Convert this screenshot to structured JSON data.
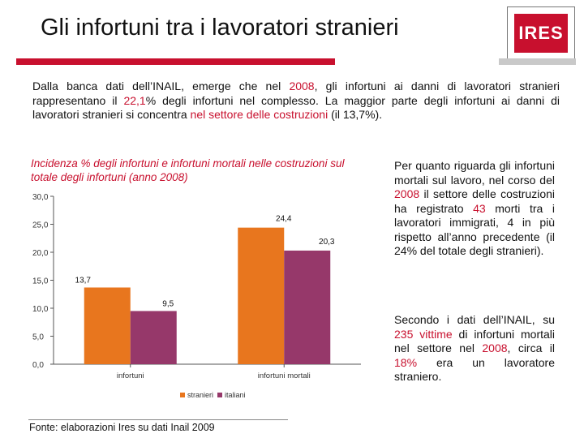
{
  "header": {
    "title": "Gli infortuni tra i lavoratori stranieri",
    "logo_text": "IRES",
    "accent_color": "#c8102e"
  },
  "intro": {
    "p1": "Dalla banca dati dell’INAIL, emerge che nel ",
    "year": "2008",
    "p2": ", gli infortuni ai danni di lavoratori stranieri rappresentano il ",
    "pct": "22,1",
    "p3": "% degli infortuni nel complesso. La maggior parte degli infortuni ai danni di lavoratori stranieri si concentra ",
    "sector": "nel settore delle costruzioni",
    "p4": " (il 13,7%)."
  },
  "chart_data": {
    "type": "bar",
    "title": "Incidenza % degli infortuni e infortuni mortali nelle costruzioni sul totale degli infortuni (anno 2008)",
    "categories": [
      "infortuni",
      "infortuni mortali"
    ],
    "series": [
      {
        "name": "stranieri",
        "values": [
          13.7,
          24.4
        ],
        "labels": [
          "13,7",
          "24,4"
        ],
        "color": "#e8761e"
      },
      {
        "name": "italiani",
        "values": [
          9.5,
          20.3
        ],
        "labels": [
          "9,5",
          "20,3"
        ],
        "color": "#96386a"
      }
    ],
    "ylim": [
      0,
      30
    ],
    "yticks": [
      0,
      5,
      10,
      15,
      20,
      25,
      30
    ],
    "ytick_labels": [
      "0,0",
      "5,0",
      "10,0",
      "15,0",
      "20,0",
      "25,0",
      "30,0"
    ],
    "legend_position": "bottom",
    "grid": false
  },
  "right": {
    "p1_a": "Per quanto riguarda gli infortuni mortali sul lavoro, nel corso del ",
    "p1_year": "2008",
    "p1_b": " il settore delle costruzioni ha registrato ",
    "p1_num": "43",
    "p1_c": " morti tra i lavoratori immigrati, 4 in più rispetto all’anno precedente (il 24% del totale degli stranieri).",
    "p2_a": "Secondo i dati dell’INAIL, su ",
    "p2_num": "235 vittime",
    "p2_b": " di infortuni mortali nel settore nel ",
    "p2_year": "2008",
    "p2_c": ", circa il ",
    "p2_pct": "18%",
    "p2_d": " era un lavoratore straniero."
  },
  "footer": {
    "source": "Fonte: elaborazioni Ires su dati Inail 2009"
  }
}
